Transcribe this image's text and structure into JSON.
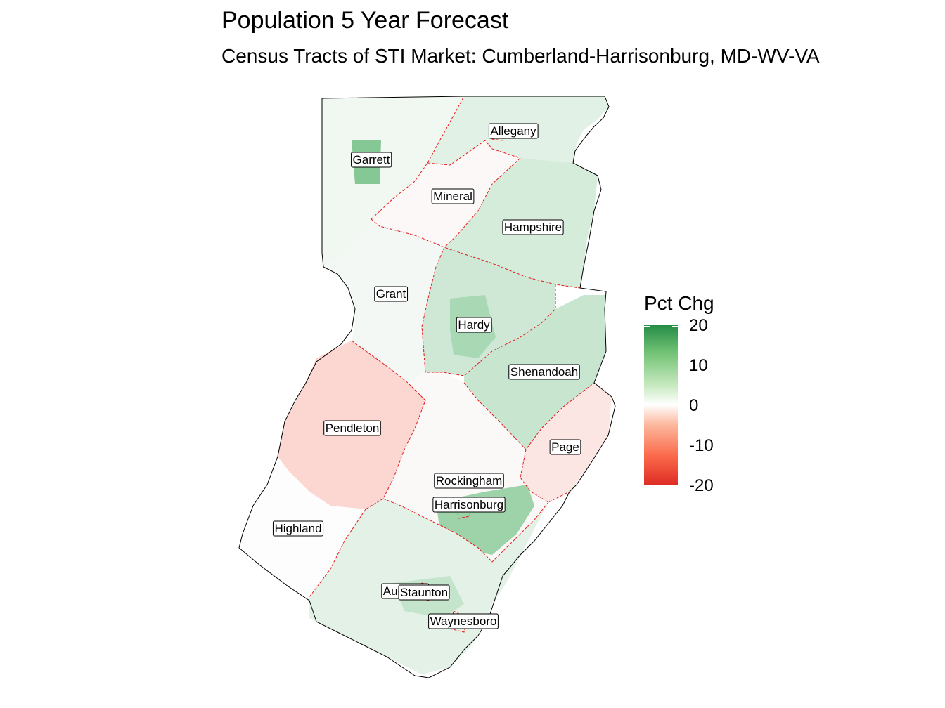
{
  "title": "Population 5 Year Forecast",
  "subtitle": "Census Tracts of STI Market: Cumberland-Harrisonburg, MD-WV-VA",
  "legend": {
    "title": "Pct Chg",
    "ticks": [
      "20",
      "10",
      "0",
      "-10",
      "-20"
    ],
    "colors": {
      "high": "#238b45",
      "mid": "#ffffff",
      "low": "#de2d26"
    }
  },
  "counties": [
    {
      "name": "Allegany",
      "pct": 4
    },
    {
      "name": "Garrett",
      "pct": 3
    },
    {
      "name": "Mineral",
      "pct": -1
    },
    {
      "name": "Hampshire",
      "pct": 6
    },
    {
      "name": "Grant",
      "pct": 1
    },
    {
      "name": "Hardy",
      "pct": 7
    },
    {
      "name": "Shenandoah",
      "pct": 8
    },
    {
      "name": "Pendleton",
      "pct": -5
    },
    {
      "name": "Page",
      "pct": -3
    },
    {
      "name": "Rockingham",
      "pct": 1
    },
    {
      "name": "Harrisonburg",
      "pct": 12
    },
    {
      "name": "Highland",
      "pct": 0
    },
    {
      "name": "Augusta",
      "pct": 4
    },
    {
      "name": "Staunton",
      "pct": 2
    },
    {
      "name": "Waynesboro",
      "pct": 3
    }
  ]
}
